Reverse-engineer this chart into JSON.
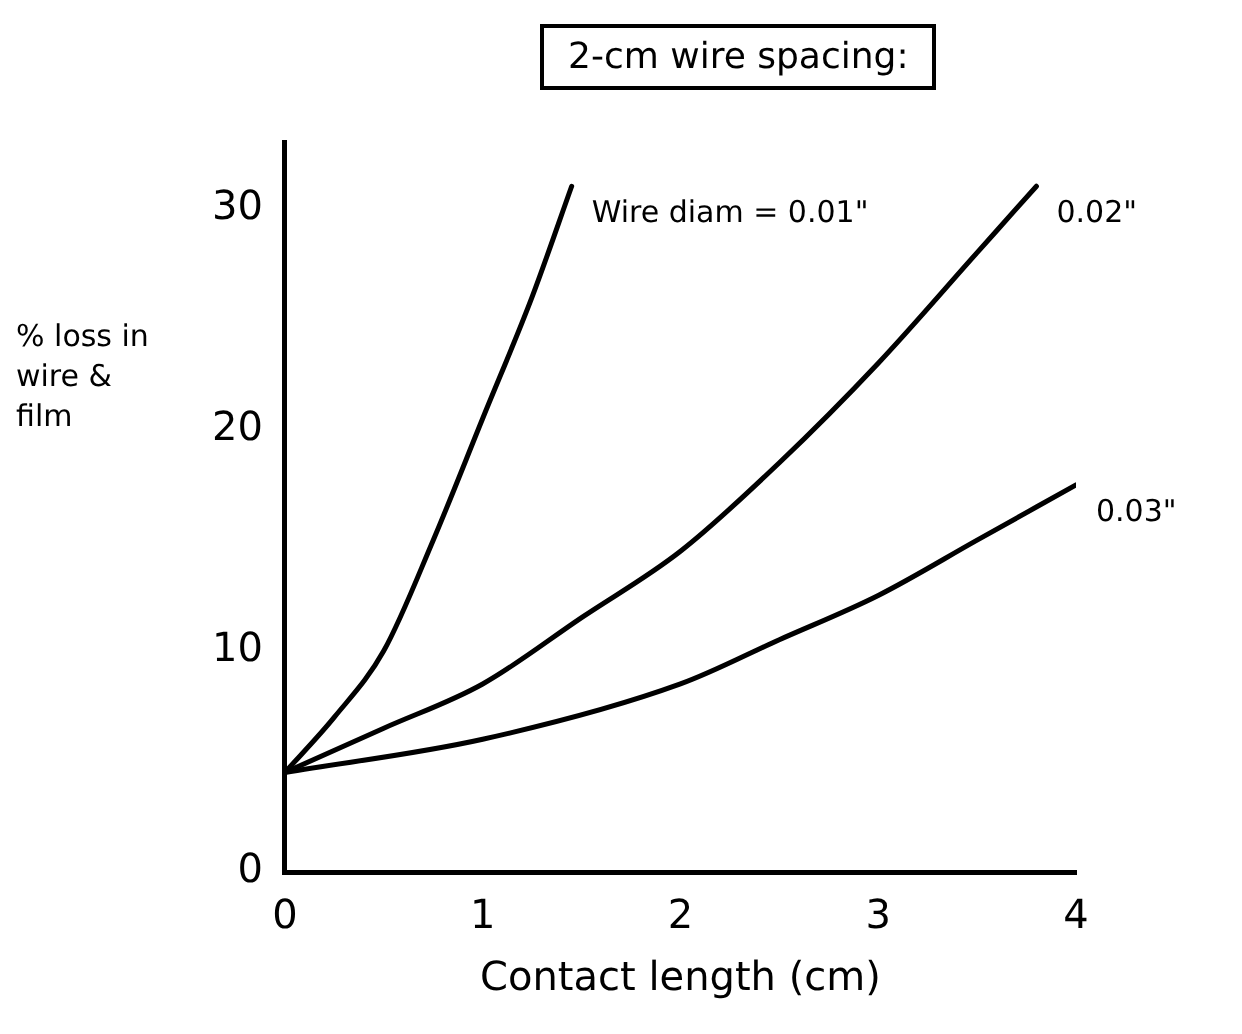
{
  "chart_data": {
    "type": "line",
    "title": "2-cm wire spacing:",
    "xlabel": "Contact length (cm)",
    "ylabel": "% loss in wire & film",
    "xlim": [
      0,
      4
    ],
    "ylim": [
      0,
      33
    ],
    "xticks": [
      0,
      1,
      2,
      3,
      4
    ],
    "yticks": [
      0,
      10,
      20,
      30
    ],
    "grid": false,
    "legend": false,
    "marker": "none",
    "line_style": "solid",
    "series": [
      {
        "name": "Wire diam = 0.01\"",
        "color": "#000000",
        "x": [
          0,
          0.25,
          0.5,
          0.75,
          1,
          1.25,
          1.45
        ],
        "values": [
          4.5,
          7,
          10,
          15,
          20.5,
          26,
          31
        ]
      },
      {
        "name": "0.02\"",
        "color": "#000000",
        "x": [
          0,
          0.5,
          1,
          1.5,
          2,
          2.5,
          3,
          3.5,
          3.8
        ],
        "values": [
          4.5,
          6.5,
          8.5,
          11.5,
          14.5,
          18.5,
          23,
          28,
          31
        ]
      },
      {
        "name": "0.03\"",
        "color": "#000000",
        "x": [
          0,
          1,
          2,
          2.5,
          3,
          3.5,
          4
        ],
        "values": [
          4.5,
          6,
          8.5,
          10.5,
          12.5,
          15,
          17.5
        ]
      }
    ]
  }
}
